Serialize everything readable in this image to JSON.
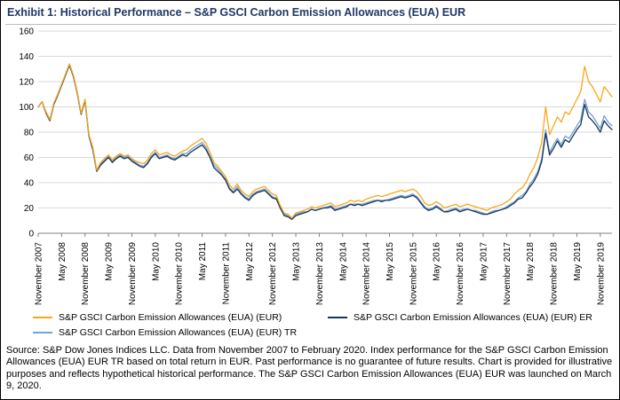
{
  "title": "Exhibit 1: Historical Performance – S&P GSCI Carbon Emission Allowances (EUA) EUR",
  "source_text": "Source: S&P Dow Jones Indices LLC. Data from November 2007 to February 2020. Index performance for the S&P GSCI Carbon Emission Allowances (EUA) EUR TR based on total return in EUR. Past performance is no guarantee of future results. Chart is provided for illustrative purposes and reflects hypothetical historical performance. The S&P GSCI Carbon Emission Allowances (EUA) EUR was launched on March 9, 2020.",
  "chart_data": {
    "type": "line",
    "title": "Exhibit 1: Historical Performance – S&P GSCI Carbon Emission Allowances (EUA) EUR",
    "xlabel": "",
    "ylabel": "",
    "ylim": [
      0,
      160
    ],
    "y_ticks": [
      0,
      20,
      40,
      60,
      80,
      100,
      120,
      140,
      160
    ],
    "grid": "horizontal",
    "legend_position": "bottom",
    "x_start": "November 2007",
    "x_end": "February 2020",
    "frequency": "monthly",
    "x_tick_labels": [
      "November 2007",
      "May 2008",
      "November 2008",
      "May 2009",
      "November 2009",
      "May 2010",
      "November 2010",
      "May 2011",
      "November 2011",
      "May 2012",
      "November 2012",
      "May 2013",
      "November 2013",
      "May 2014",
      "November 2014",
      "May 2015",
      "November 2015",
      "May 2016",
      "November 2016",
      "May 2017",
      "November 2017",
      "May 2018",
      "November 2018",
      "May 2019",
      "November 2019"
    ],
    "x_tick_month_indices": [
      0,
      6,
      12,
      18,
      24,
      30,
      36,
      42,
      48,
      54,
      60,
      66,
      72,
      78,
      84,
      90,
      96,
      102,
      108,
      114,
      120,
      126,
      132,
      138,
      144
    ],
    "series": [
      {
        "key": "eur",
        "name": "S&P GSCI Carbon Emission Allowances (EUA) (EUR)",
        "color": "#FAA61A",
        "values": [
          100,
          104,
          96,
          90,
          103,
          110,
          118,
          126,
          134,
          125,
          112,
          95,
          106,
          78,
          68,
          50,
          56,
          59,
          62,
          58,
          61,
          63,
          61,
          62,
          59,
          57,
          56,
          55,
          58,
          63,
          66,
          62,
          63,
          64,
          62,
          61,
          63,
          65,
          66,
          69,
          71,
          73,
          75,
          71,
          64,
          56,
          53,
          49,
          45,
          38,
          35,
          39,
          34,
          31,
          29,
          33,
          35,
          36,
          37,
          34,
          31,
          30,
          22,
          16,
          15,
          12,
          16,
          17,
          18,
          19,
          21,
          20,
          21,
          22,
          23,
          24,
          21,
          22,
          23,
          24,
          26,
          25,
          26,
          25,
          27,
          28,
          29,
          30,
          29,
          30,
          31,
          32,
          33,
          34,
          33,
          34,
          35,
          33,
          29,
          24,
          22,
          23,
          25,
          23,
          20,
          21,
          22,
          23,
          21,
          22,
          23,
          22,
          21,
          20,
          19,
          18,
          20,
          21,
          22,
          23,
          25,
          27,
          31,
          34,
          36,
          40,
          47,
          52,
          60,
          72,
          100,
          78,
          85,
          92,
          88,
          96,
          94,
          100,
          106,
          112,
          132,
          120,
          116,
          110,
          104,
          116,
          112,
          108
        ]
      },
      {
        "key": "er",
        "name": "S&P GSCI Carbon Emission Allowances (EUA) (EUR) ER",
        "color": "#17375E",
        "values": [
          100,
          104,
          95,
          89,
          102,
          109,
          117,
          125,
          133,
          124,
          111,
          94,
          105,
          77,
          66,
          49,
          54,
          57,
          60,
          56,
          59,
          61,
          59,
          60,
          57,
          55,
          53,
          52,
          55,
          60,
          63,
          59,
          60,
          61,
          59,
          58,
          60,
          62,
          61,
          64,
          66,
          68,
          70,
          66,
          60,
          52,
          49,
          46,
          42,
          35,
          32,
          35,
          31,
          28,
          26,
          30,
          32,
          33,
          34,
          31,
          28,
          27,
          20,
          14,
          13,
          11,
          14,
          15,
          16,
          17,
          19,
          18,
          19,
          20,
          20,
          21,
          18,
          19,
          20,
          21,
          23,
          22,
          23,
          22,
          23,
          24,
          25,
          26,
          25,
          26,
          26,
          27,
          28,
          29,
          28,
          29,
          30,
          28,
          24,
          20,
          18,
          19,
          21,
          19,
          17,
          17,
          18,
          19,
          17,
          18,
          19,
          18,
          17,
          16,
          15,
          15,
          16,
          17,
          18,
          19,
          20,
          22,
          24,
          27,
          28,
          32,
          37,
          41,
          47,
          57,
          79,
          62,
          67,
          73,
          68,
          74,
          72,
          77,
          82,
          86,
          102,
          92,
          89,
          85,
          80,
          89,
          85,
          82
        ]
      },
      {
        "key": "tr",
        "name": "S&P GSCI Carbon Emission Allowances (EUA) (EUR) TR",
        "color": "#74A3D4",
        "values": [
          100,
          104,
          96,
          90,
          103,
          110,
          118,
          126,
          134,
          125,
          112,
          95,
          106,
          78,
          67,
          50,
          55,
          58,
          61,
          57,
          60,
          62,
          60,
          61,
          58,
          56,
          54,
          53,
          56,
          61,
          64,
          60,
          61,
          62,
          60,
          59,
          61,
          63,
          63,
          66,
          68,
          70,
          72,
          68,
          61,
          54,
          51,
          47,
          43,
          36,
          33,
          37,
          32,
          29,
          27,
          31,
          33,
          34,
          35,
          32,
          29,
          28,
          20,
          15,
          14,
          11,
          15,
          16,
          17,
          17,
          19,
          18,
          19,
          20,
          21,
          22,
          19,
          20,
          21,
          22,
          23,
          23,
          23,
          23,
          24,
          25,
          26,
          26,
          26,
          26,
          27,
          28,
          29,
          30,
          29,
          30,
          31,
          29,
          25,
          21,
          19,
          20,
          22,
          20,
          17,
          18,
          19,
          20,
          18,
          19,
          19,
          18,
          18,
          17,
          16,
          15,
          17,
          18,
          18,
          19,
          21,
          23,
          25,
          28,
          30,
          33,
          39,
          43,
          49,
          59,
          82,
          64,
          70,
          75,
          70,
          77,
          75,
          80,
          85,
          90,
          106,
          96,
          93,
          88,
          83,
          93,
          88,
          85
        ]
      }
    ]
  }
}
